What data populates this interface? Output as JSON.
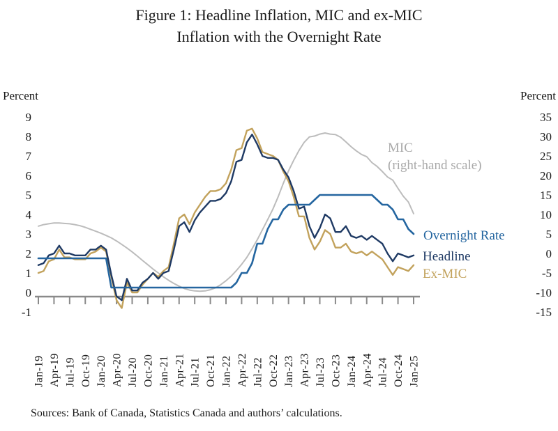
{
  "figure": {
    "title_line1": "Figure 1: Headline Inflation, MIC and ex-MIC",
    "title_line2": "Inflation with the Overnight Rate",
    "source": "Sources: Bank of Canada, Statistics Canada and authors’ calculations."
  },
  "axes": {
    "left_unit": "Percent",
    "right_unit": "Percent"
  },
  "annotations": {
    "mic_line1": "MIC",
    "mic_line2": "(right-hand scale)",
    "overnight": "Overnight Rate",
    "headline": "Headline",
    "ex_mic": "Ex-MIC"
  },
  "colors": {
    "headline": "#1f3a64",
    "ex_mic": "#c2a25c",
    "overnight": "#2566a0",
    "mic": "#bcbcbc",
    "mic_label": "#a9a9a9",
    "axis": "#8a8a8a",
    "text": "#1a1a1a"
  },
  "chart_data": {
    "type": "line",
    "title": "Figure 1: Headline Inflation, MIC and ex-MIC Inflation with the Overnight Rate",
    "xlabel": "",
    "ylabel_left": "Percent",
    "ylabel_right": "Percent",
    "grid": false,
    "legend_position": "inline-right-annotations",
    "x_frequency": "monthly",
    "x_start": "Jan-19",
    "x_end": "Jan-25",
    "x_tick_labels": [
      "Jan-19",
      "Apr-19",
      "Jul-19",
      "Oct-19",
      "Jan-20",
      "Apr-20",
      "Jul-20",
      "Oct-20",
      "Jan-21",
      "Apr-21",
      "Jul-21",
      "Oct-21",
      "Jan-22",
      "Apr-22",
      "Jul-22",
      "Oct-22",
      "Jan-23",
      "Apr-23",
      "Jul-23",
      "Oct-23",
      "Jan-24",
      "Apr-24",
      "Jul-24",
      "Oct-24",
      "Jan-25"
    ],
    "left_axis": {
      "range": [
        -1,
        9
      ],
      "ticks": [
        9,
        8,
        7,
        6,
        5,
        4,
        3,
        2,
        1,
        0,
        -1
      ]
    },
    "right_axis": {
      "range": [
        -15,
        35
      ],
      "ticks": [
        35,
        30,
        25,
        20,
        15,
        10,
        5,
        0,
        -5,
        -10,
        -15
      ]
    },
    "series": [
      {
        "name": "MIC",
        "axis": "right",
        "color": "#bcbcbc",
        "width": 2.0,
        "values": [
          7.0,
          7.4,
          7.6,
          7.8,
          7.8,
          7.7,
          7.6,
          7.4,
          7.1,
          6.7,
          6.2,
          5.7,
          5.2,
          4.6,
          4.0,
          3.2,
          2.3,
          1.4,
          0.4,
          -0.7,
          -1.8,
          -2.9,
          -4.0,
          -5.0,
          -6.0,
          -6.9,
          -7.7,
          -8.4,
          -9.0,
          -9.4,
          -9.6,
          -9.7,
          -9.6,
          -9.3,
          -8.8,
          -8.0,
          -7.0,
          -5.8,
          -4.4,
          -2.8,
          -1.0,
          1.2,
          3.5,
          6.1,
          8.7,
          11.4,
          14.5,
          18.0,
          21.2,
          23.9,
          26.4,
          28.5,
          29.9,
          30.1,
          30.6,
          30.9,
          30.6,
          30.5,
          29.8,
          28.6,
          27.4,
          26.3,
          25.4,
          24.8,
          23.3,
          22.3,
          21.0,
          19.6,
          18.8,
          16.7,
          14.7,
          13.2,
          10.2
        ]
      },
      {
        "name": "Ex-MIC",
        "axis": "left",
        "color": "#c2a25c",
        "width": 2.4,
        "values": [
          1.0,
          1.1,
          1.6,
          1.7,
          2.2,
          1.8,
          1.8,
          1.7,
          1.7,
          1.7,
          2.0,
          2.1,
          2.3,
          2.1,
          0.8,
          -0.4,
          -0.8,
          0.5,
          0.0,
          0.0,
          0.4,
          0.7,
          1.0,
          0.8,
          1.1,
          1.3,
          2.5,
          3.8,
          4.0,
          3.5,
          4.1,
          4.5,
          4.9,
          5.2,
          5.2,
          5.3,
          5.6,
          6.3,
          7.3,
          7.4,
          8.3,
          8.4,
          7.9,
          7.2,
          7.1,
          7.0,
          6.8,
          6.2,
          5.7,
          4.9,
          3.9,
          3.9,
          2.8,
          2.2,
          2.6,
          3.2,
          3.0,
          2.3,
          2.3,
          2.5,
          2.1,
          2.0,
          2.1,
          1.9,
          2.1,
          1.9,
          1.7,
          1.3,
          0.9,
          1.3,
          1.2,
          1.1,
          1.4
        ]
      },
      {
        "name": "Headline",
        "axis": "left",
        "color": "#1f3a64",
        "width": 2.4,
        "values": [
          1.4,
          1.5,
          1.9,
          2.0,
          2.4,
          2.0,
          2.0,
          1.9,
          1.9,
          1.9,
          2.2,
          2.2,
          2.4,
          2.2,
          0.9,
          -0.2,
          -0.4,
          0.7,
          0.1,
          0.1,
          0.5,
          0.7,
          1.0,
          0.7,
          1.0,
          1.1,
          2.2,
          3.4,
          3.6,
          3.1,
          3.7,
          4.1,
          4.4,
          4.7,
          4.7,
          4.8,
          5.1,
          5.7,
          6.7,
          6.8,
          7.7,
          8.1,
          7.6,
          7.0,
          6.9,
          6.9,
          6.8,
          6.3,
          5.9,
          5.2,
          4.3,
          4.4,
          3.4,
          2.8,
          3.3,
          4.0,
          3.8,
          3.1,
          3.1,
          3.4,
          2.9,
          2.8,
          2.9,
          2.7,
          2.9,
          2.7,
          2.5,
          2.0,
          1.6,
          2.0,
          1.9,
          1.8,
          1.9
        ]
      },
      {
        "name": "Overnight Rate",
        "axis": "left",
        "color": "#2566a0",
        "width": 2.6,
        "values": [
          1.75,
          1.75,
          1.75,
          1.75,
          1.75,
          1.75,
          1.75,
          1.75,
          1.75,
          1.75,
          1.75,
          1.75,
          1.75,
          1.75,
          0.25,
          0.25,
          0.25,
          0.25,
          0.25,
          0.25,
          0.25,
          0.25,
          0.25,
          0.25,
          0.25,
          0.25,
          0.25,
          0.25,
          0.25,
          0.25,
          0.25,
          0.25,
          0.25,
          0.25,
          0.25,
          0.25,
          0.25,
          0.25,
          0.5,
          1.0,
          1.0,
          1.5,
          2.5,
          2.5,
          3.25,
          3.75,
          3.75,
          4.25,
          4.5,
          4.5,
          4.5,
          4.5,
          4.5,
          4.75,
          5.0,
          5.0,
          5.0,
          5.0,
          5.0,
          5.0,
          5.0,
          5.0,
          5.0,
          5.0,
          5.0,
          4.75,
          4.5,
          4.5,
          4.25,
          3.75,
          3.75,
          3.25,
          3.0
        ]
      }
    ]
  }
}
